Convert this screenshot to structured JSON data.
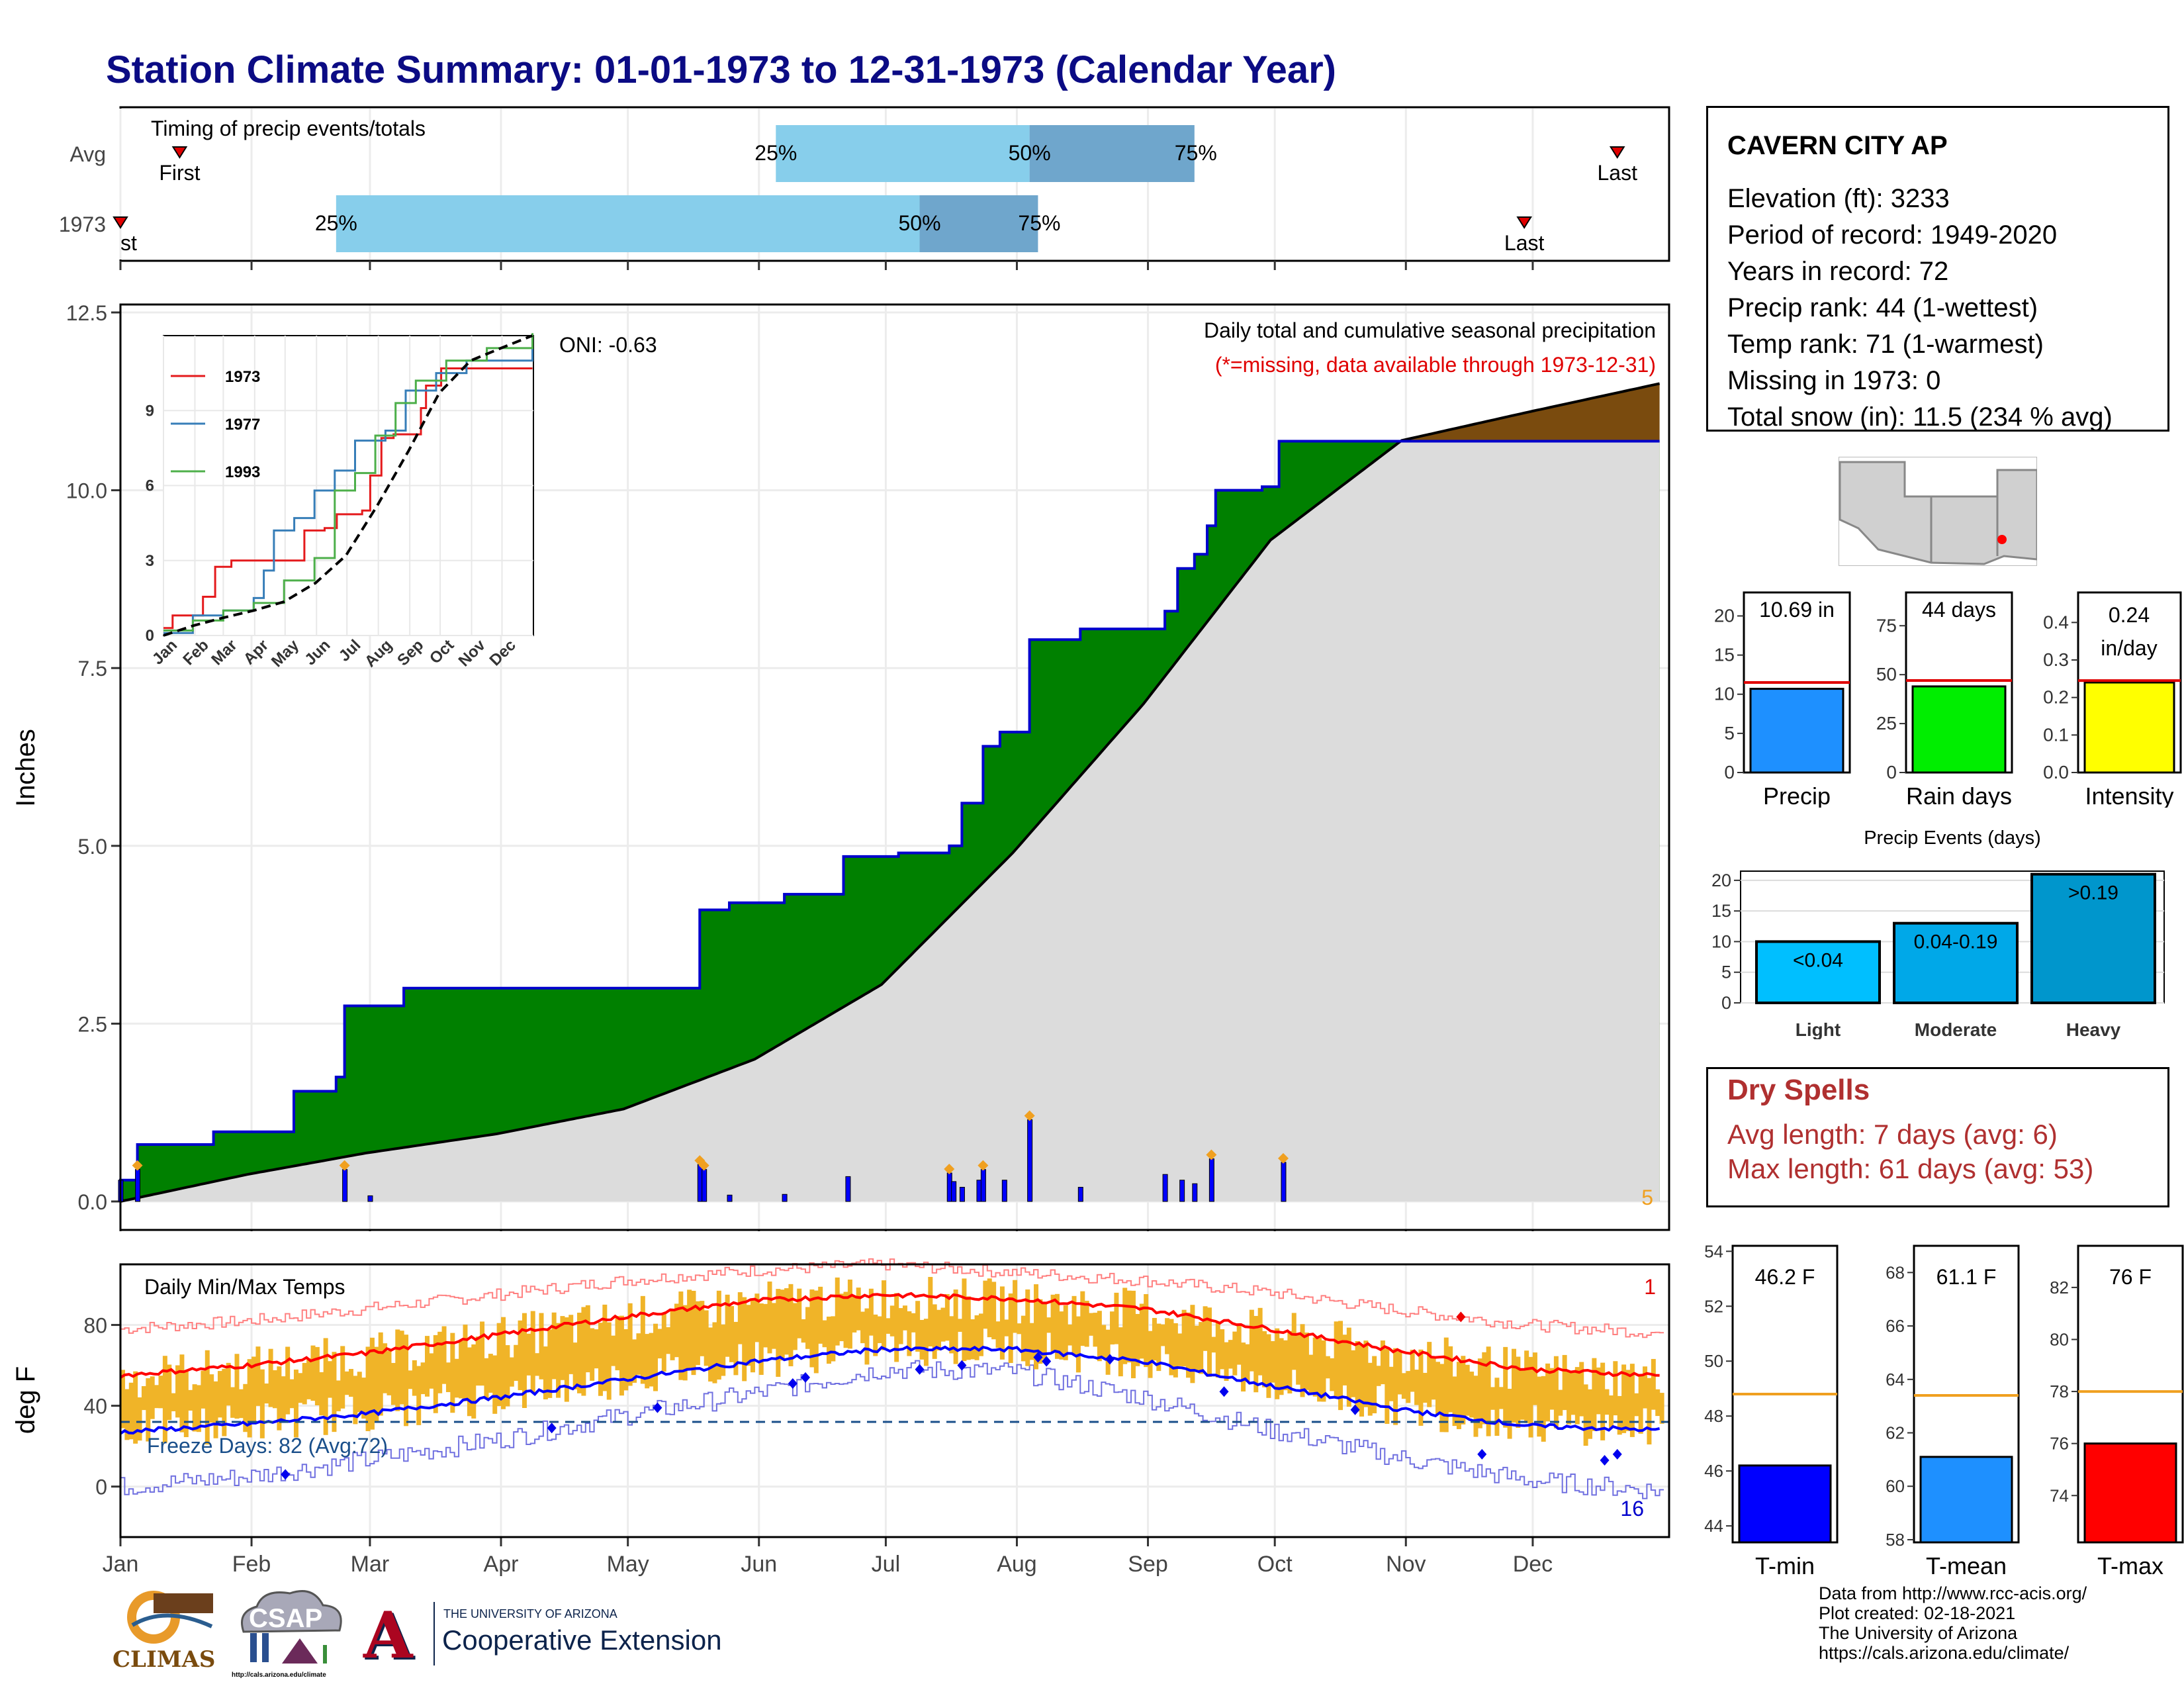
{
  "title": "Station Climate Summary: 01-01-1973 to 12-31-1973 (Calendar Year)",
  "timing": {
    "label": "Timing of precip events/totals",
    "rows": [
      {
        "name": "Avg",
        "first_label": "First",
        "last_label": "Last",
        "q25": "25%",
        "q50": "50%",
        "q75": "75%",
        "first_doy": 15,
        "p25_doy": 156,
        "p50_doy": 216,
        "p75_doy": 255,
        "last_doy": 355
      },
      {
        "name": "1973",
        "first_label": "First",
        "last_label": "Last",
        "q25": "25%",
        "q50": "50%",
        "q75": "75%",
        "first_doy": 1,
        "p25_doy": 52,
        "p50_doy": 190,
        "p75_doy": 218,
        "last_doy": 333
      }
    ],
    "colors": {
      "light": "#87ceeb",
      "dark": "#6fa6cc",
      "marker": "#e00000"
    }
  },
  "precip_panel": {
    "ylabel": "Inches",
    "yticks": [
      "0.0",
      "2.5",
      "5.0",
      "7.5",
      "10.0",
      "12.5"
    ],
    "title": "Daily total and cumulative seasonal precipitation",
    "subtitle": "(*=missing, data available through 1973-12-31)",
    "oni": "ONI: -0.63",
    "corner_count": "5"
  },
  "chart_data": [
    {
      "type": "area",
      "name": "cumulative precipitation 1973 vs average",
      "ylim": [
        0,
        12.5
      ],
      "x_unit": "day of year",
      "observed_steps": [
        [
          1,
          0.3
        ],
        [
          5,
          0.8
        ],
        [
          23,
          0.98
        ],
        [
          42,
          1.55
        ],
        [
          52,
          1.75
        ],
        [
          54,
          2.75
        ],
        [
          68,
          3.0
        ],
        [
          137,
          3.0
        ],
        [
          138,
          4.1
        ],
        [
          145,
          4.2
        ],
        [
          158,
          4.32
        ],
        [
          172,
          4.85
        ],
        [
          185,
          4.9
        ],
        [
          197,
          5.0
        ],
        [
          200,
          5.6
        ],
        [
          205,
          6.4
        ],
        [
          209,
          6.6
        ],
        [
          216,
          7.9
        ],
        [
          228,
          8.05
        ],
        [
          248,
          8.3
        ],
        [
          251,
          8.9
        ],
        [
          255,
          9.1
        ],
        [
          258,
          9.5
        ],
        [
          260,
          10.0
        ],
        [
          271,
          10.05
        ],
        [
          275,
          10.69
        ],
        [
          365,
          10.69
        ]
      ],
      "average_cumulative": [
        [
          1,
          0
        ],
        [
          31,
          0.38
        ],
        [
          59,
          0.68
        ],
        [
          90,
          0.95
        ],
        [
          120,
          1.3
        ],
        [
          151,
          2.0
        ],
        [
          181,
          3.05
        ],
        [
          212,
          4.9
        ],
        [
          243,
          7.0
        ],
        [
          273,
          9.3
        ],
        [
          304,
          10.7
        ],
        [
          334,
          11.1
        ],
        [
          365,
          11.5
        ]
      ],
      "daily_totals": [
        [
          1,
          0.3
        ],
        [
          5,
          0.45
        ],
        [
          54,
          0.45
        ],
        [
          60,
          0.08
        ],
        [
          138,
          0.52
        ],
        [
          139,
          0.45
        ],
        [
          145,
          0.09
        ],
        [
          158,
          0.1
        ],
        [
          173,
          0.35
        ],
        [
          197,
          0.4
        ],
        [
          198,
          0.28
        ],
        [
          200,
          0.2
        ],
        [
          204,
          0.3
        ],
        [
          205,
          0.45
        ],
        [
          210,
          0.3
        ],
        [
          216,
          1.15
        ],
        [
          228,
          0.2
        ],
        [
          248,
          0.38
        ],
        [
          252,
          0.3
        ],
        [
          255,
          0.25
        ],
        [
          259,
          0.6
        ],
        [
          276,
          0.55
        ]
      ],
      "colors": {
        "observed_fill": "#008000",
        "observed_line": "#0000cc",
        "average_fill": "#dcdcdc",
        "deficit_fill": "#7a4b0e",
        "daily_bars": "#0000ff",
        "marker": "#f0a020"
      }
    },
    {
      "type": "line",
      "name": "inset cumulative precipitation",
      "categories": [
        "Jan",
        "Feb",
        "Mar",
        "Apr",
        "May",
        "Jun",
        "Jul",
        "Aug",
        "Sep",
        "Oct",
        "Nov",
        "Dec"
      ],
      "ylim": [
        0,
        12
      ],
      "yticks": [
        "0",
        "3",
        "6",
        "9"
      ],
      "series": [
        {
          "name": "1973",
          "color": "#e41a1c",
          "points": [
            [
              1,
              0.3
            ],
            [
              10,
              0.8
            ],
            [
              40,
              1.55
            ],
            [
              52,
              2.75
            ],
            [
              68,
              3.0
            ],
            [
              137,
              3.0
            ],
            [
              140,
              4.2
            ],
            [
              160,
              4.3
            ],
            [
              172,
              4.85
            ],
            [
              197,
              5.0
            ],
            [
              205,
              6.4
            ],
            [
              216,
              7.9
            ],
            [
              228,
              8.05
            ],
            [
              255,
              9.1
            ],
            [
              260,
              10.0
            ],
            [
              275,
              10.69
            ],
            [
              365,
              10.69
            ]
          ]
        },
        {
          "name": "1977",
          "color": "#377eb8",
          "points": [
            [
              1,
              0.1
            ],
            [
              30,
              0.8
            ],
            [
              60,
              1.0
            ],
            [
              90,
              1.5
            ],
            [
              100,
              2.6
            ],
            [
              110,
              4.2
            ],
            [
              130,
              4.7
            ],
            [
              150,
              5.8
            ],
            [
              170,
              6.6
            ],
            [
              190,
              7.8
            ],
            [
              220,
              8.2
            ],
            [
              240,
              9.8
            ],
            [
              270,
              10.5
            ],
            [
              300,
              11.0
            ],
            [
              365,
              11.6
            ]
          ]
        },
        {
          "name": "1993",
          "color": "#4daf4a",
          "points": [
            [
              1,
              0.2
            ],
            [
              30,
              0.6
            ],
            [
              60,
              1.0
            ],
            [
              90,
              1.3
            ],
            [
              120,
              2.2
            ],
            [
              150,
              3.1
            ],
            [
              170,
              5.8
            ],
            [
              190,
              6.5
            ],
            [
              210,
              8.0
            ],
            [
              230,
              9.3
            ],
            [
              250,
              10.2
            ],
            [
              280,
              11.0
            ],
            [
              320,
              11.5
            ],
            [
              365,
              12.1
            ]
          ]
        }
      ],
      "average_dashed": [
        [
          1,
          0
        ],
        [
          31,
          0.4
        ],
        [
          59,
          0.7
        ],
        [
          90,
          1.0
        ],
        [
          120,
          1.35
        ],
        [
          151,
          2.1
        ],
        [
          181,
          3.2
        ],
        [
          212,
          5.2
        ],
        [
          243,
          7.4
        ],
        [
          273,
          9.7
        ],
        [
          304,
          11.0
        ],
        [
          334,
          11.5
        ],
        [
          365,
          12.0
        ]
      ]
    },
    {
      "type": "bar",
      "name": "Precip",
      "categories": [
        "Precip"
      ],
      "values": [
        10.69
      ],
      "average": 11.5,
      "ylim": [
        0,
        23
      ],
      "yticks": [
        "0",
        "5",
        "10",
        "15",
        "20"
      ],
      "label": "10.69 in",
      "color": "#1e90ff"
    },
    {
      "type": "bar",
      "name": "Rain days",
      "categories": [
        "Rain days"
      ],
      "values": [
        44
      ],
      "average": 47,
      "ylim": [
        0,
        92
      ],
      "yticks": [
        "0",
        "25",
        "50",
        "75"
      ],
      "label": "44 days",
      "color": "#00ee00"
    },
    {
      "type": "bar",
      "name": "Intensity",
      "categories": [
        "Intensity"
      ],
      "values": [
        0.24
      ],
      "average": 0.245,
      "ylim": [
        0,
        0.48
      ],
      "yticks": [
        "0.0",
        "0.1",
        "0.2",
        "0.3",
        "0.4"
      ],
      "label": "0.24",
      "label2": "in/day",
      "color": "#ffff00"
    },
    {
      "type": "bar",
      "name": "Precip Events (days)",
      "title": "Precip Events (days)",
      "categories": [
        "Light",
        "Moderate",
        "Heavy"
      ],
      "bar_labels": [
        "<0.04",
        "0.04-0.19",
        ">0.19"
      ],
      "values": [
        10,
        13,
        21
      ],
      "ylim": [
        0,
        21.5
      ],
      "yticks": [
        "0",
        "5",
        "10",
        "15",
        "20"
      ],
      "colors": [
        "#00bfff",
        "#00a8e8",
        "#0096cc"
      ]
    },
    {
      "type": "line",
      "name": "Daily Min/Max Temps",
      "ylim": [
        -25,
        110
      ],
      "yticks": [
        "0",
        "40",
        "80"
      ],
      "ylabel": "deg F",
      "months": [
        "Jan",
        "Feb",
        "Mar",
        "Apr",
        "May",
        "Jun",
        "Jul",
        "Aug",
        "Sep",
        "Oct",
        "Nov",
        "Dec"
      ],
      "label": "Daily Min/Max Temps",
      "freeze_label": "Freeze Days: 82 (Avg:72)",
      "freeze_line": 32,
      "corner_top": "1",
      "corner_bottom": "16",
      "avg_max": [
        [
          1,
          55
        ],
        [
          31,
          60
        ],
        [
          59,
          66
        ],
        [
          90,
          75
        ],
        [
          120,
          84
        ],
        [
          151,
          92
        ],
        [
          181,
          95
        ],
        [
          212,
          93
        ],
        [
          243,
          88
        ],
        [
          273,
          78
        ],
        [
          304,
          67
        ],
        [
          334,
          58
        ],
        [
          365,
          55
        ]
      ],
      "avg_min": [
        [
          1,
          27
        ],
        [
          31,
          31
        ],
        [
          59,
          36
        ],
        [
          90,
          44
        ],
        [
          120,
          53
        ],
        [
          151,
          62
        ],
        [
          181,
          68
        ],
        [
          212,
          68
        ],
        [
          243,
          62
        ],
        [
          273,
          50
        ],
        [
          304,
          38
        ],
        [
          334,
          30
        ],
        [
          365,
          28
        ]
      ],
      "record_max": [
        [
          1,
          78
        ],
        [
          31,
          82
        ],
        [
          59,
          88
        ],
        [
          90,
          95
        ],
        [
          120,
          102
        ],
        [
          151,
          107
        ],
        [
          181,
          110
        ],
        [
          212,
          106
        ],
        [
          243,
          102
        ],
        [
          273,
          96
        ],
        [
          304,
          87
        ],
        [
          334,
          80
        ],
        [
          365,
          76
        ]
      ],
      "record_min": [
        [
          1,
          0
        ],
        [
          31,
          5
        ],
        [
          59,
          13
        ],
        [
          90,
          23
        ],
        [
          120,
          35
        ],
        [
          151,
          46
        ],
        [
          181,
          58
        ],
        [
          212,
          57
        ],
        [
          243,
          44
        ],
        [
          273,
          28
        ],
        [
          304,
          14
        ],
        [
          334,
          3
        ],
        [
          365,
          -2
        ]
      ],
      "colors": {
        "range": "#f0b428",
        "avg_max": "#ff0000",
        "avg_min": "#0000ff",
        "record_max": "#ff8080",
        "record_min": "#7070e0"
      }
    },
    {
      "type": "bar",
      "name": "T-min",
      "categories": [
        "T-min"
      ],
      "values": [
        46.2
      ],
      "average": 48.8,
      "ylim": [
        43.4,
        54.2
      ],
      "yticks": [
        "44",
        "46",
        "48",
        "50",
        "52",
        "54"
      ],
      "label": "46.2 F",
      "color": "#0000ff"
    },
    {
      "type": "bar",
      "name": "T-mean",
      "categories": [
        "T-mean"
      ],
      "values": [
        61.1
      ],
      "average": 63.4,
      "ylim": [
        57.9,
        69.0
      ],
      "yticks": [
        "58",
        "60",
        "62",
        "64",
        "66",
        "68"
      ],
      "label": "61.1 F",
      "color": "#1e90ff"
    },
    {
      "type": "bar",
      "name": "T-max",
      "categories": [
        "T-max"
      ],
      "values": [
        76
      ],
      "average": 78,
      "ylim": [
        72.2,
        83.6
      ],
      "yticks": [
        "74",
        "76",
        "78",
        "80",
        "82"
      ],
      "label": "76 F",
      "color": "#ff0000"
    }
  ],
  "station": {
    "name": "CAVERN CITY AP",
    "lines": [
      "Elevation (ft): 3233",
      "Period of record: 1949-2020",
      "Years in record: 72",
      "Precip rank: 44 (1-wettest)",
      "Temp rank: 71 (1-warmest)",
      "Missing in 1973: 0",
      "Total snow (in): 11.5 (234 % avg)"
    ]
  },
  "dry_spells": {
    "title": "Dry Spells",
    "avg": "Avg length: 7 days (avg: 6)",
    "max": "Max length: 61 days (avg: 53)"
  },
  "months": [
    "Jan",
    "Feb",
    "Mar",
    "Apr",
    "May",
    "Jun",
    "Jul",
    "Aug",
    "Sep",
    "Oct",
    "Nov",
    "Dec"
  ],
  "footer": {
    "lines": [
      "Data from http://www.rcc-acis.org/",
      "Plot created: 02-18-2021",
      "The University of Arizona",
      "https://cals.arizona.edu/climate/"
    ]
  },
  "logos": {
    "climas": "CLIMAS",
    "csap": "CSAP",
    "csap_url": "http://cals.arizona.edu/climate",
    "ua_line1": "THE UNIVERSITY OF ARIZONA",
    "ua_line2": "Cooperative Extension",
    "ua_letter": "A"
  }
}
